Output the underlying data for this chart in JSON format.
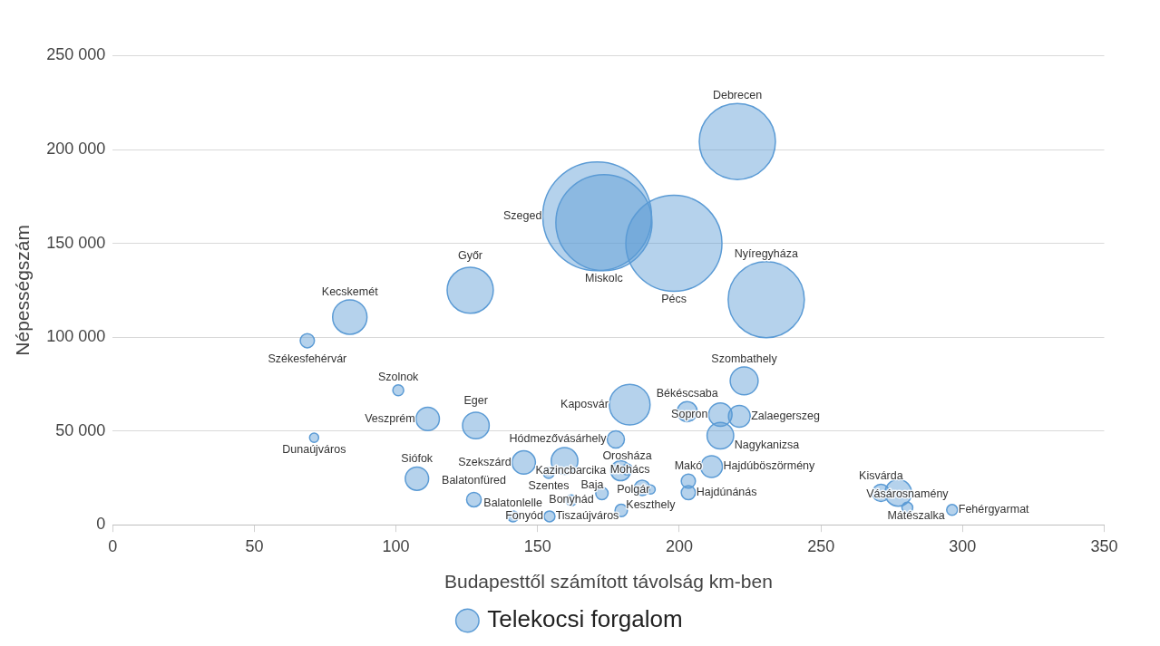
{
  "chart_data": {
    "type": "bubble",
    "xlabel": "Budapesttől számított távolság km-ben",
    "ylabel": "Népességszám",
    "xlim": [
      0,
      350
    ],
    "xticks": [
      0,
      50,
      100,
      150,
      200,
      250,
      300,
      350
    ],
    "ylim": [
      0,
      250000
    ],
    "yticks": [
      {
        "value": 0,
        "label": "0"
      },
      {
        "value": 50000,
        "label": "50 000"
      },
      {
        "value": 100000,
        "label": "100 000"
      },
      {
        "value": 150000,
        "label": "150 000"
      },
      {
        "value": 200000,
        "label": "200 000"
      },
      {
        "value": 250000,
        "label": "250 000"
      }
    ],
    "grid": "y",
    "legend": "bottom",
    "series": [
      {
        "name": "Telekocsi forgalom",
        "color": "#5b9bd5",
        "x": [
          220.5,
          171,
          173.4,
          198.1,
          230.7,
          126.2,
          83.7,
          68.7,
          100.8,
          71.1,
          111.2,
          128.2,
          107.4,
          127.5,
          141.3,
          145.1,
          159.5,
          153.9,
          161.9,
          154.2,
          182.5,
          202.8,
          177.6,
          179.3,
          181.6,
          172.7,
          186.9,
          189.9,
          179.5,
          214.5,
          221.2,
          222.9,
          214.5,
          211.4,
          203.2,
          203.2,
          271.2,
          277.3,
          280.5,
          296.3
        ],
        "values": [
          204300,
          164400,
          161000,
          150000,
          120000,
          125000,
          110700,
          98100,
          71700,
          46400,
          56400,
          52900,
          24600,
          13400,
          4500,
          33200,
          34000,
          27600,
          13000,
          4500,
          64000,
          60300,
          45500,
          28800,
          29500,
          16700,
          19700,
          18800,
          7600,
          58700,
          57800,
          76700,
          47500,
          31000,
          23300,
          17100,
          17000,
          17000,
          9100,
          7900
        ],
        "sizes": [
          0.49,
          1,
          0.78,
          0.78,
          0.49,
          0.18,
          0.1,
          0.017,
          0.01,
          0.007,
          0.046,
          0.06,
          0.046,
          0.018,
          0.01,
          0.046,
          0.06,
          0.01,
          0.01,
          0.01,
          0.14,
          0.034,
          0.025,
          0.034,
          0.01,
          0.013,
          0.02,
          0.007,
          0.013,
          0.046,
          0.04,
          0.066,
          0.06,
          0.04,
          0.017,
          0.017,
          0.025,
          0.06,
          0.01,
          0.01
        ],
        "value_labels": [
          "Debrecen",
          "Szeged",
          "Miskolc",
          "Pécs",
          "Nyíregyháza",
          "Győr",
          "Kecskemét",
          "Székesfehérvár",
          "Szolnok",
          "Dunaújváros",
          "Veszprém",
          "Eger",
          "Siófok",
          "Balatonfüred",
          "Balatonlelle",
          "Szekszárd",
          "Baja",
          "Szentes",
          "Tiszaújváros",
          "Fonyód",
          "Kaposvár",
          "Békéscsaba",
          "Hódmezővásárhely",
          "Kazincbarcika",
          "Orosháza",
          "Bonyhád",
          "Mohács",
          "Keszthely",
          "Polgár",
          "Sopron",
          "Zalaegerszeg",
          "Szombathely",
          "Nagykanizsa",
          "Hajdúböszörmény",
          "Makó",
          "Hajdúnánás",
          "Kisvárda",
          "Mátészalka",
          "Vásárosnamény",
          "Fehérgyarmat"
        ]
      }
    ]
  }
}
